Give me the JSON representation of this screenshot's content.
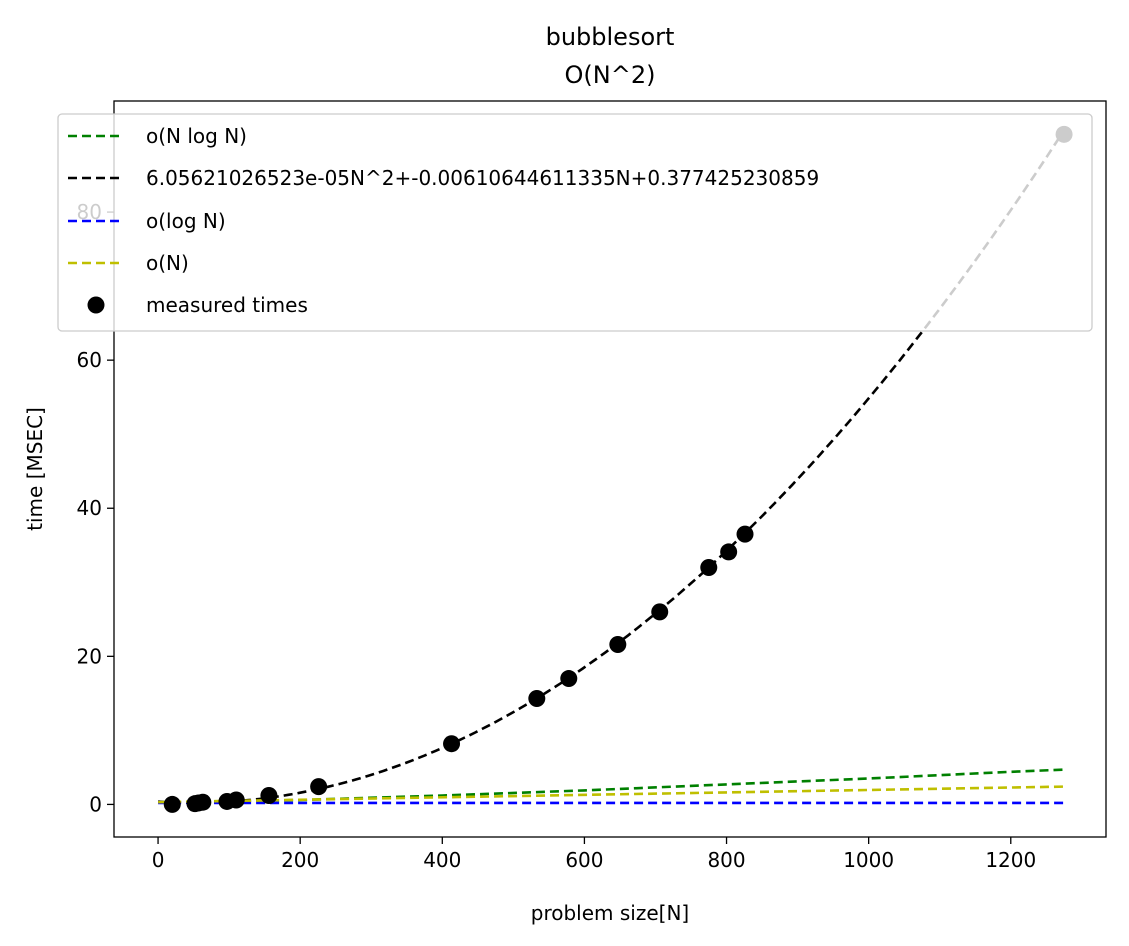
{
  "chart_data": {
    "type": "scatter",
    "title": "bubblesort",
    "subtitle": "O(N^2)",
    "xlabel": "problem size[N]",
    "ylabel": "time [MSEC]",
    "xlim": [
      -62,
      1334
    ],
    "ylim": [
      -4.4,
      95
    ],
    "xticks": [
      0,
      200,
      400,
      600,
      800,
      1000,
      1200
    ],
    "yticks": [
      0,
      20,
      40,
      60,
      80
    ],
    "legend_position": "top",
    "grid": false,
    "x_range": [
      0,
      1275
    ],
    "series": [
      {
        "name": "o(N log N)",
        "kind": "line",
        "style": "dashed",
        "color": "#008000",
        "x": [
          0,
          200,
          400,
          600,
          800,
          1000,
          1200,
          1275
        ],
        "y": [
          0.3,
          0.6,
          1.2,
          1.9,
          2.7,
          3.5,
          4.4,
          4.7
        ]
      },
      {
        "name": "6.05621026523e-05N^2+-0.00610644611335N+0.377425230859",
        "kind": "fit",
        "style": "dashed",
        "color": "#000000",
        "coefficients": [
          6.05621026523e-05,
          -0.00610644611335,
          0.377425230859
        ]
      },
      {
        "name": "o(log N)",
        "kind": "line",
        "style": "dashed",
        "color": "#0000ff",
        "x": [
          0,
          1275
        ],
        "y": [
          0.2,
          0.2
        ]
      },
      {
        "name": "o(N)",
        "kind": "line",
        "style": "dashed",
        "color": "#bfbf00",
        "x": [
          0,
          1275
        ],
        "y": [
          0.3,
          2.4
        ]
      },
      {
        "name": "measured times",
        "kind": "points",
        "color": "#000000",
        "x": [
          20,
          52,
          57,
          63,
          97,
          110,
          156,
          226,
          413,
          533,
          578,
          647,
          706,
          775,
          803,
          826,
          1275
        ],
        "y": [
          0.0,
          0.1,
          0.2,
          0.3,
          0.4,
          0.6,
          1.2,
          2.4,
          8.2,
          14.3,
          17.0,
          21.6,
          26.0,
          32.0,
          34.1,
          36.5,
          90.5
        ]
      }
    ]
  }
}
